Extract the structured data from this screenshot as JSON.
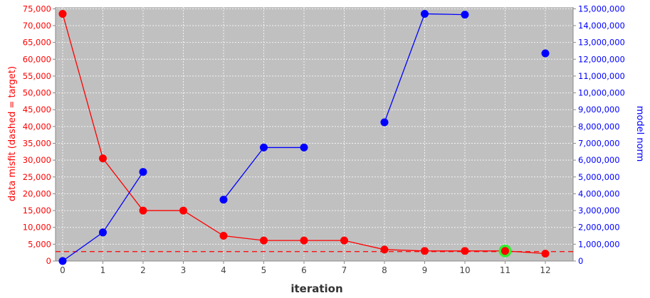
{
  "chart_data": {
    "type": "line",
    "xlabel": "iteration",
    "ylabel_left": "data misfit (dashed = target)",
    "ylabel_right": "model norm",
    "x_ticks": [
      "0",
      "1",
      "2",
      "3",
      "4",
      "5",
      "6",
      "7",
      "8",
      "9",
      "10",
      "11",
      "12"
    ],
    "xlim": [
      0,
      12.5
    ],
    "y_left_ticks": [
      "0",
      "5,000",
      "10,000",
      "15,000",
      "20,000",
      "25,000",
      "30,000",
      "35,000",
      "40,000",
      "45,000",
      "50,000",
      "55,000",
      "60,000",
      "65,000",
      "70,000",
      "75,000"
    ],
    "y_left_lim": [
      0,
      75500
    ],
    "y_right_ticks": [
      "0",
      "1,000,000",
      "2,000,000",
      "3,000,000",
      "4,000,000",
      "5,000,000",
      "6,000,000",
      "7,000,000",
      "8,000,000",
      "9,000,000",
      "10,000,000",
      "11,000,000",
      "12,000,000",
      "13,000,000",
      "14,000,000",
      "15,000,000"
    ],
    "y_right_lim": [
      0,
      15100000
    ],
    "target_misfit": 2800,
    "highlight_iteration": 11,
    "grid": true,
    "series": [
      {
        "axis": "left",
        "color": "#ff0000",
        "x": [
          0,
          1,
          2,
          3,
          4,
          5,
          6,
          7,
          8,
          9,
          10,
          11,
          12
        ],
        "y": [
          73500,
          30500,
          15000,
          15000,
          7500,
          6100,
          6100,
          6100,
          3400,
          3000,
          3000,
          3000,
          2200
        ]
      },
      {
        "axis": "right",
        "color": "#0000ff",
        "x": [
          0,
          1,
          2,
          3,
          4,
          5,
          6,
          7,
          8,
          9,
          10,
          11,
          12
        ],
        "y": [
          0,
          1700000,
          5300000,
          null,
          3650000,
          6750000,
          6750000,
          null,
          8250000,
          14700000,
          14650000,
          null,
          12350000
        ]
      }
    ],
    "colors": {
      "plot_background": "#c0c0c0",
      "gridline": "#ffffff",
      "highlight_ring": "#33ee33"
    }
  }
}
